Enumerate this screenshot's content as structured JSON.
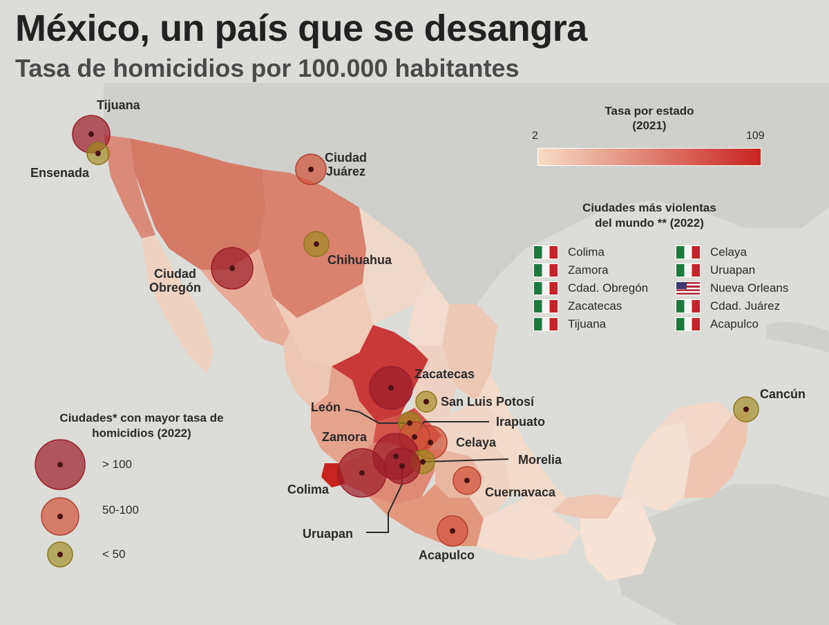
{
  "title": "México, un país que se desangra",
  "subtitle": "Tasa de homicidios por 100.000 habitantes",
  "colors": {
    "sea": "#dcdcd8",
    "land_other": "#cfcfcb",
    "rate_min": "#f7dcc6",
    "rate_max": "#c8241f",
    "bubble_high": "#9b1c2a",
    "bubble_mid": "#d2513a",
    "bubble_low": "#a08a1e"
  },
  "state_scale": {
    "title": "Tasa por estado",
    "year": "(2021)",
    "min": "2",
    "max": "109"
  },
  "world_ranking": {
    "title_line1": "Ciudades más violentas",
    "title_line2": "del mundo ** (2022)",
    "column1": [
      {
        "name": "Colima",
        "flag": "mexico-flag-icon"
      },
      {
        "name": "Zamora",
        "flag": "mexico-flag-icon"
      },
      {
        "name": "Cdad. Obregón",
        "flag": "mexico-flag-icon"
      },
      {
        "name": "Zacatecas",
        "flag": "mexico-flag-icon"
      },
      {
        "name": "Tijuana",
        "flag": "mexico-flag-icon"
      }
    ],
    "column2": [
      {
        "name": "Celaya",
        "flag": "mexico-flag-icon"
      },
      {
        "name": "Uruapan",
        "flag": "mexico-flag-icon"
      },
      {
        "name": "Nueva Orleans",
        "flag": "usa-flag-icon"
      },
      {
        "name": "Cdad. Juárez",
        "flag": "mexico-flag-icon"
      },
      {
        "name": "Acapulco",
        "flag": "mexico-flag-icon"
      }
    ]
  },
  "bubble_legend": {
    "title_line1": "Ciudades* con mayor tasa de",
    "title_line2": "homicidios (2022)",
    "high": "> 100",
    "mid": "50-100",
    "low": "< 50"
  },
  "cities": {
    "tijuana": {
      "label": "Tijuana",
      "category": "high"
    },
    "ensenada": {
      "label": "Ensenada",
      "category": "low"
    },
    "ciudad_juarez": {
      "line1": "Ciudad",
      "line2": "Juárez",
      "category": "mid"
    },
    "chihuahua": {
      "label": "Chihuahua",
      "category": "low"
    },
    "ciudad_obregon": {
      "line1": "Ciudad",
      "line2": "Obregón",
      "category": "high"
    },
    "zacatecas": {
      "label": "Zacatecas",
      "category": "high"
    },
    "san_luis_potosi": {
      "label": "San Luis Potosí",
      "category": "low"
    },
    "leon": {
      "label": "León",
      "category": "low"
    },
    "irapuato": {
      "label": "Irapuato",
      "category": "mid"
    },
    "celaya": {
      "label": "Celaya",
      "category": "high"
    },
    "zamora": {
      "label": "Zamora",
      "category": "high"
    },
    "morelia": {
      "label": "Morelia",
      "category": "low"
    },
    "colima": {
      "label": "Colima",
      "category": "high"
    },
    "uruapan": {
      "label": "Uruapan",
      "category": "high"
    },
    "cuernavaca": {
      "label": "Cuernavaca",
      "category": "mid"
    },
    "acapulco": {
      "label": "Acapulco",
      "category": "mid"
    },
    "cancun": {
      "label": "Cancún",
      "category": "low"
    }
  }
}
